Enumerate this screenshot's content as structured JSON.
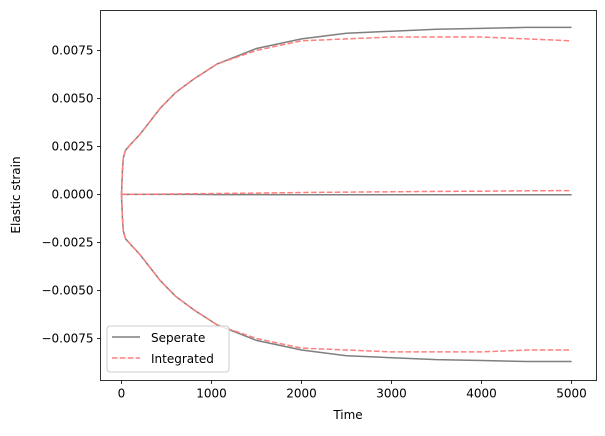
{
  "chart_data": {
    "type": "line",
    "title": "",
    "xlabel": "Time",
    "ylabel": "Elastic strain",
    "xlim": [
      -233,
      5277
    ],
    "ylim": [
      -0.00969,
      0.00958
    ],
    "xticks": [
      0,
      1000,
      2000,
      3000,
      4000,
      5000
    ],
    "xtick_labels": [
      "0",
      "1000",
      "2000",
      "3000",
      "4000",
      "5000"
    ],
    "yticks": [
      0.0075,
      0.005,
      0.0025,
      0,
      -0.0025,
      -0.005,
      -0.0075
    ],
    "ytick_labels": [
      "0.0075",
      "0.0050",
      "0.0025",
      "0.0000",
      "−0.0025",
      "−0.0050",
      "−0.0075"
    ],
    "grid": false,
    "legend": {
      "placement": "lower-left",
      "entries": [
        "Seperate",
        "Integrated"
      ]
    },
    "x": [
      0,
      10,
      20,
      44,
      100,
      200,
      300,
      432,
      600,
      800,
      1065,
      1500,
      2000,
      2500,
      3000,
      3500,
      4000,
      4500,
      5000
    ],
    "series": [
      {
        "name": "Seperate",
        "group": "upper",
        "color": "#7f7f7f",
        "style": "solid",
        "values": [
          0,
          0.0012,
          0.0019,
          0.0023,
          0.0026,
          0.0031,
          0.0037,
          0.0045,
          0.0053,
          0.006,
          0.0068,
          0.0076,
          0.0081,
          0.0084,
          0.0085,
          0.0086,
          0.00865,
          0.0087,
          0.0087
        ]
      },
      {
        "name": "Seperate",
        "group": "middle",
        "color": "#7f7f7f",
        "style": "solid",
        "values": [
          0,
          0,
          0,
          0,
          0,
          0,
          0,
          0,
          0,
          0,
          -1e-05,
          -1e-05,
          -2e-05,
          -2e-05,
          -2e-05,
          -2e-05,
          -2e-05,
          -2e-05,
          -2e-05
        ]
      },
      {
        "name": "Seperate",
        "group": "lower",
        "color": "#7f7f7f",
        "style": "solid",
        "values": [
          0,
          -0.0012,
          -0.0019,
          -0.0023,
          -0.0026,
          -0.0031,
          -0.0037,
          -0.0045,
          -0.0053,
          -0.006,
          -0.0068,
          -0.0076,
          -0.0081,
          -0.0084,
          -0.0085,
          -0.0086,
          -0.00865,
          -0.0087,
          -0.0087
        ]
      },
      {
        "name": "Integrated",
        "group": "upper",
        "color": "#ff7f7f",
        "style": "dashed",
        "values": [
          0,
          0.0012,
          0.0019,
          0.0023,
          0.0026,
          0.0031,
          0.0037,
          0.0045,
          0.0053,
          0.006,
          0.0068,
          0.0075,
          0.008,
          0.0081,
          0.0082,
          0.0082,
          0.0082,
          0.0081,
          0.008
        ]
      },
      {
        "name": "Integrated",
        "group": "middle",
        "color": "#ff7f7f",
        "style": "dashed",
        "values": [
          0,
          0,
          0,
          0,
          5e-06,
          1e-05,
          1.5e-05,
          2e-05,
          3e-05,
          4e-05,
          5e-05,
          7e-05,
          0.0001,
          0.00012,
          0.00014,
          0.00016,
          0.00017,
          0.00019,
          0.0002
        ]
      },
      {
        "name": "Integrated",
        "group": "lower",
        "color": "#ff7f7f",
        "style": "dashed",
        "values": [
          0,
          -0.0012,
          -0.0019,
          -0.0023,
          -0.0026,
          -0.0031,
          -0.0037,
          -0.0045,
          -0.0053,
          -0.006,
          -0.0068,
          -0.0075,
          -0.008,
          -0.0081,
          -0.0082,
          -0.0082,
          -0.0082,
          -0.0081,
          -0.0081
        ]
      }
    ]
  }
}
